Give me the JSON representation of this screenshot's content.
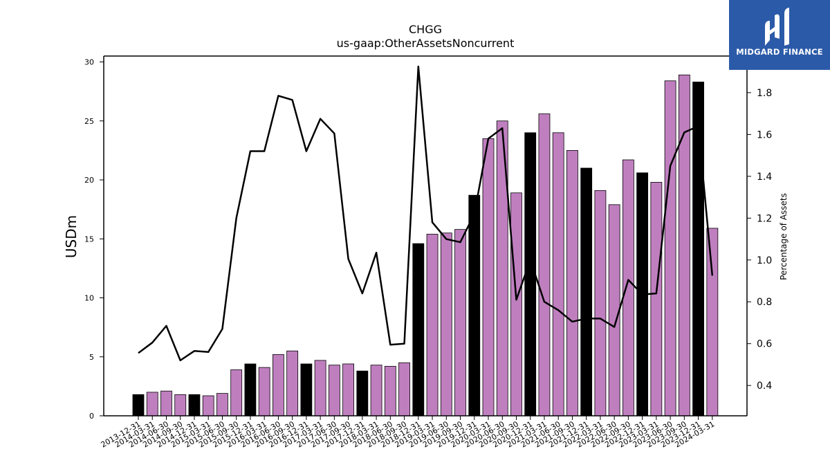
{
  "logo": {
    "text": "MIDGARD FINANCE",
    "icon": "midgard-m-logo-icon",
    "color": "#2b5aa8"
  },
  "chart_data": {
    "type": "bar",
    "title": "CHGG",
    "subtitle": "us-gaap:OtherAssetsNoncurrent",
    "ylabel": "USDm",
    "y2label": "Percentage of Assets",
    "ylim": [
      0,
      30.5
    ],
    "y2lim": [
      0.255,
      1.975
    ],
    "yticks": [
      0,
      5,
      10,
      15,
      20,
      25,
      30
    ],
    "y2ticks": [
      "0.4",
      "0.6",
      "0.8",
      "1.0",
      "1.2",
      "1.4",
      "1.6",
      "1.8"
    ],
    "grid": false,
    "colors": {
      "bar_quarter": "#bf7fbf",
      "bar_year_end": "#000000",
      "line": "#000000"
    },
    "categories": [
      "2013-12-31",
      "2014-03-31",
      "2014-06-30",
      "2014-09-30",
      "2014-12-31",
      "2015-03-31",
      "2015-06-30",
      "2015-09-30",
      "2015-12-31",
      "2016-03-31",
      "2016-06-30",
      "2016-09-30",
      "2016-12-31",
      "2017-03-31",
      "2017-06-30",
      "2017-09-30",
      "2017-12-31",
      "2018-03-31",
      "2018-06-30",
      "2018-09-30",
      "2018-12-31",
      "2019-03-31",
      "2019-06-30",
      "2019-09-30",
      "2019-12-31",
      "2020-03-31",
      "2020-06-30",
      "2020-09-30",
      "2020-12-31",
      "2021-03-31",
      "2021-06-30",
      "2021-09-30",
      "2021-12-31",
      "2022-03-31",
      "2022-06-30",
      "2022-09-30",
      "2022-12-31",
      "2023-03-31",
      "2023-06-30",
      "2023-09-30",
      "2023-12-31",
      "2024-03-31"
    ],
    "series": [
      {
        "kind": "bar",
        "values": [
          1.8,
          2.0,
          2.1,
          1.8,
          1.8,
          1.7,
          1.9,
          3.9,
          4.4,
          4.1,
          5.2,
          5.5,
          4.4,
          4.7,
          4.3,
          4.4,
          3.8,
          4.3,
          4.2,
          4.5,
          14.6,
          15.4,
          15.5,
          15.8,
          18.7,
          23.5,
          25.0,
          18.9,
          24.0,
          25.6,
          24.0,
          22.5,
          21.0,
          19.1,
          17.9,
          21.7,
          20.6,
          19.8,
          28.4,
          28.9,
          28.3,
          15.9
        ],
        "year_end": [
          true,
          false,
          false,
          false,
          true,
          false,
          false,
          false,
          true,
          false,
          false,
          false,
          true,
          false,
          false,
          false,
          true,
          false,
          false,
          false,
          true,
          false,
          false,
          false,
          true,
          false,
          false,
          false,
          true,
          false,
          false,
          false,
          true,
          false,
          false,
          false,
          true,
          false,
          false,
          false,
          true,
          false
        ]
      },
      {
        "kind": "line",
        "axis": "right",
        "values": [
          0.555,
          0.605,
          0.685,
          0.52,
          0.565,
          0.56,
          0.67,
          1.2,
          1.52,
          1.52,
          1.785,
          1.765,
          1.52,
          1.675,
          1.605,
          1.005,
          0.84,
          1.035,
          0.595,
          0.6,
          1.925,
          1.18,
          1.1,
          1.085,
          1.22,
          1.58,
          1.63,
          0.81,
          1.0,
          0.8,
          0.76,
          0.705,
          0.72,
          0.72,
          0.68,
          0.905,
          0.835,
          0.84,
          1.45,
          1.61,
          1.64,
          0.925
        ]
      }
    ]
  }
}
